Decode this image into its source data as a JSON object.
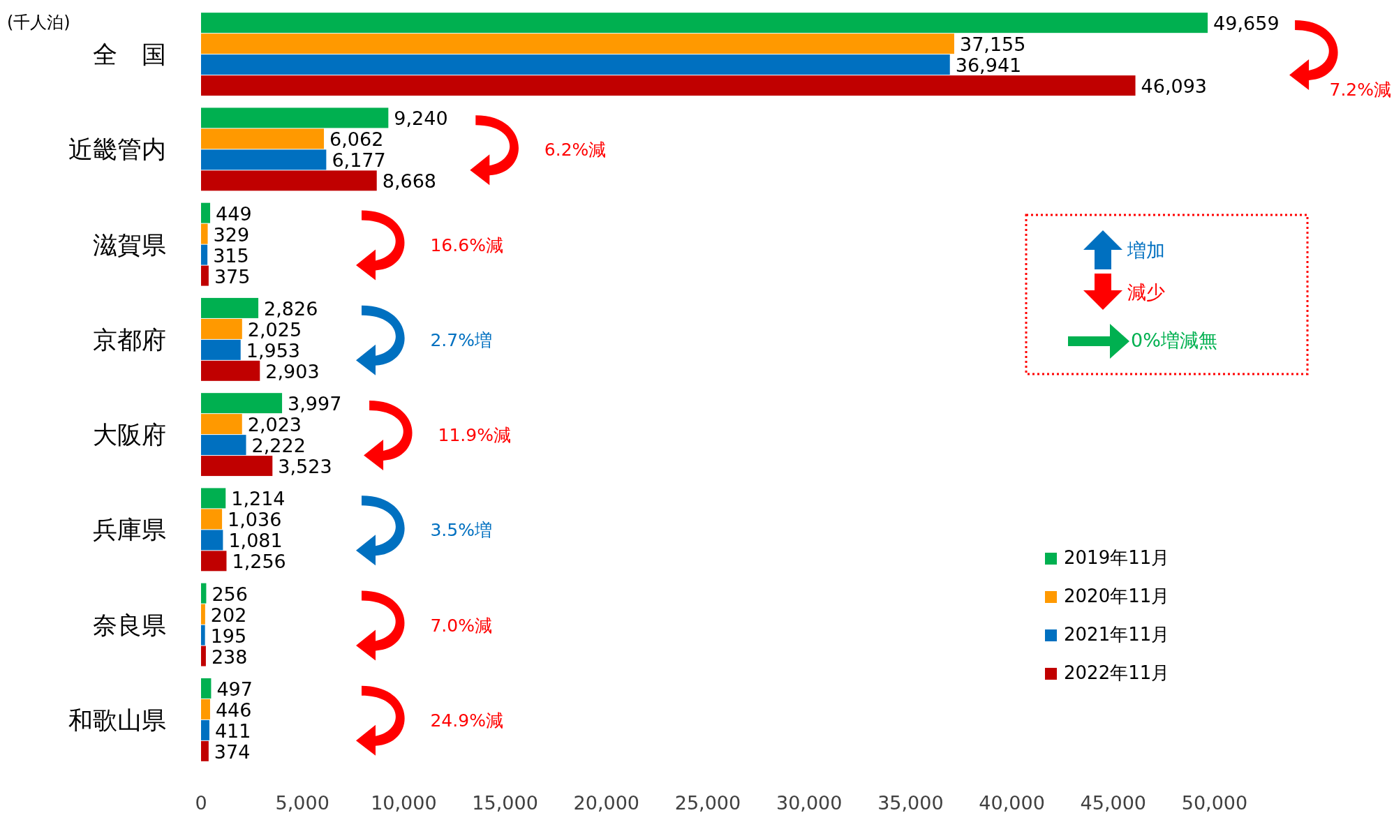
{
  "chart_data": {
    "type": "bar",
    "orientation": "horizontal",
    "ylabel": "(千人泊)",
    "categories": [
      "全　国",
      "近畿管内",
      "滋賀県",
      "京都府",
      "大阪府",
      "兵庫県",
      "奈良県",
      "和歌山県"
    ],
    "series": [
      {
        "name": "2019年11月",
        "color": "#00b050",
        "values": [
          49659,
          9240,
          449,
          2826,
          3997,
          1214,
          256,
          497
        ],
        "value_labels": [
          "49,659",
          "9,240",
          "449",
          "2,826",
          "3,997",
          "1,214",
          "256",
          "497"
        ]
      },
      {
        "name": "2020年11月",
        "color": "#ff9900",
        "values": [
          37155,
          6062,
          329,
          2025,
          2023,
          1036,
          202,
          446
        ],
        "value_labels": [
          "37,155",
          "6,062",
          "329",
          "2,025",
          "2,023",
          "1,036",
          "202",
          "446"
        ]
      },
      {
        "name": "2021年11月",
        "color": "#0070c0",
        "values": [
          36941,
          6177,
          315,
          1953,
          2222,
          1081,
          195,
          411
        ],
        "value_labels": [
          "36,941",
          "6,177",
          "315",
          "1,953",
          "2,222",
          "1,081",
          "195",
          "411"
        ]
      },
      {
        "name": "2022年11月",
        "color": "#c00000",
        "values": [
          46093,
          8668,
          375,
          2903,
          3523,
          1256,
          238,
          374
        ],
        "value_labels": [
          "46,093",
          "8,668",
          "375",
          "2,903",
          "3,523",
          "1,256",
          "238",
          "374"
        ]
      }
    ],
    "xlim": [
      0,
      50000
    ],
    "xticks": [
      {
        "value": 0,
        "label": "0"
      },
      {
        "value": 5000,
        "label": "5,000"
      },
      {
        "value": 10000,
        "label": "10,000"
      },
      {
        "value": 15000,
        "label": "15,000"
      },
      {
        "value": 20000,
        "label": "20,000"
      },
      {
        "value": 25000,
        "label": "25,000"
      },
      {
        "value": 30000,
        "label": "30,000"
      },
      {
        "value": 35000,
        "label": "35,000"
      },
      {
        "value": 40000,
        "label": "40,000"
      },
      {
        "value": 45000,
        "label": "45,000"
      },
      {
        "value": 50000,
        "label": "50,000"
      }
    ],
    "legend": "right",
    "grid": false,
    "annotations": [
      "7.2%減",
      "6.2%減",
      "16.6%減",
      "2.7%増",
      "11.9%減",
      "3.5%増",
      "7.0%減",
      "24.9%減",
      "増加",
      "減少",
      "0%増減無"
    ]
  }
}
